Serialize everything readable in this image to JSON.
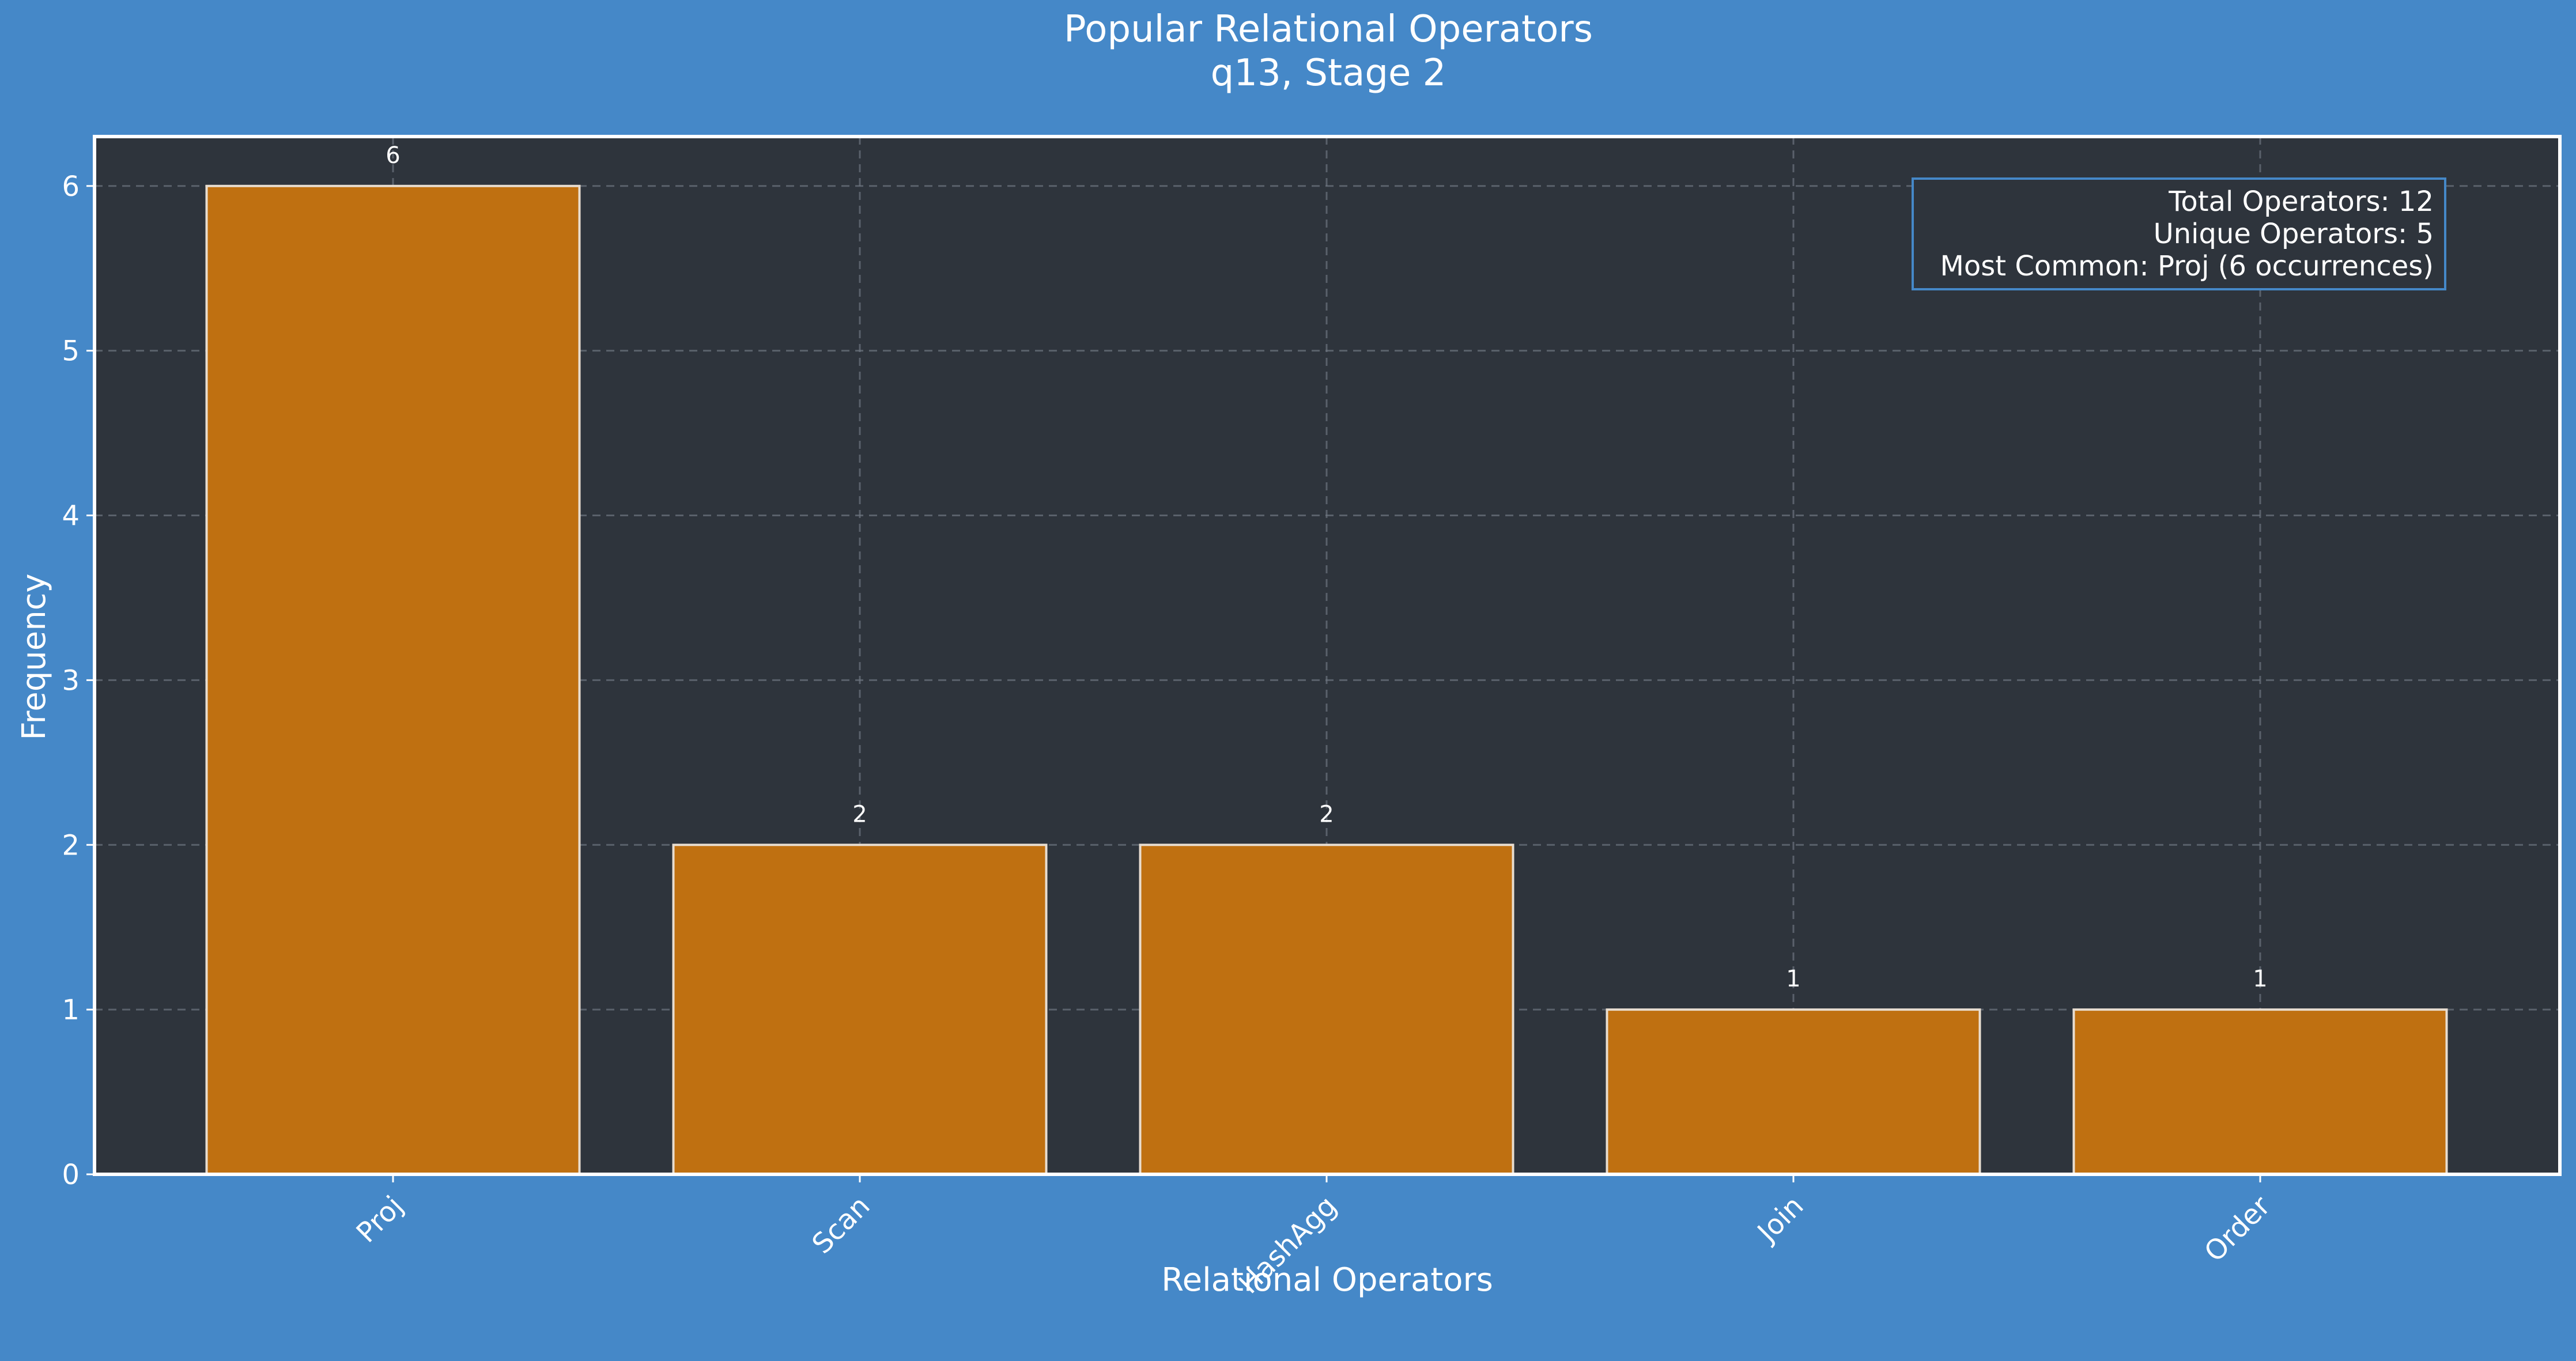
{
  "chart_data": {
    "type": "bar",
    "title": "Popular Relational Operators",
    "subtitle": "q13, Stage 2",
    "xlabel": "Relational Operators",
    "ylabel": "Frequency",
    "categories": [
      "Proj",
      "Scan",
      "HashAgg",
      "Join",
      "Order"
    ],
    "values": [
      6,
      2,
      2,
      1,
      1
    ],
    "data_labels": [
      "6",
      "2",
      "2",
      "1",
      "1"
    ],
    "ylim": [
      0,
      6.3
    ],
    "yticks": [
      0,
      1,
      2,
      3,
      4,
      5,
      6
    ],
    "ytick_labels": [
      "0",
      "1",
      "2",
      "3",
      "4",
      "5",
      "6"
    ],
    "grid": true,
    "stats_box": {
      "placement": "top-right",
      "lines": [
        "Total Operators: 12",
        "Unique Operators: 5",
        "Most Common: Proj (6 occurrences)"
      ]
    },
    "colors": {
      "background": "#4588c8",
      "plot_background": "#2e343c",
      "bar_fill": "#bf7011",
      "bar_edge": "#e8ddd0",
      "text": "#ffffff",
      "grid": "#6d7580",
      "stats_border": "#4588c8"
    }
  }
}
